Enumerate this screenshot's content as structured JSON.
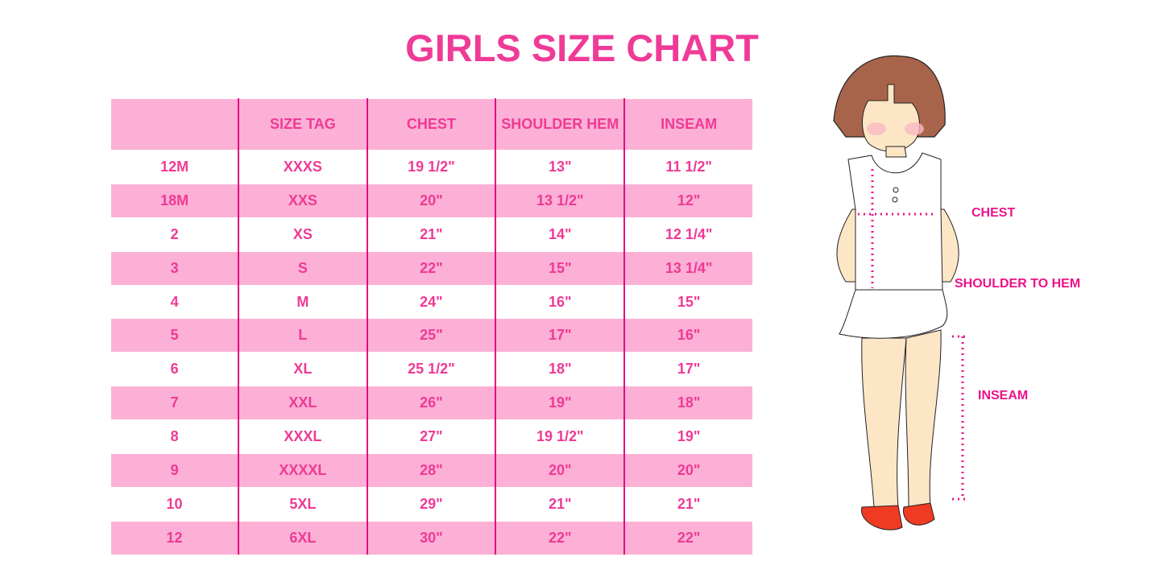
{
  "title": "GIRLS SIZE CHART",
  "table": {
    "headers": [
      "",
      "SIZE TAG",
      "CHEST",
      "SHOULDER HEM",
      "INSEAM"
    ],
    "rows": [
      [
        "12M",
        "XXXS",
        "19 1/2\"",
        "13\"",
        "11 1/2\""
      ],
      [
        "18M",
        "XXS",
        "20\"",
        "13 1/2\"",
        "12\""
      ],
      [
        "2",
        "XS",
        "21\"",
        "14\"",
        "12 1/4\""
      ],
      [
        "3",
        "S",
        "22\"",
        "15\"",
        "13 1/4\""
      ],
      [
        "4",
        "M",
        "24\"",
        "16\"",
        "15\""
      ],
      [
        "5",
        "L",
        "25\"",
        "17\"",
        "16\""
      ],
      [
        "6",
        "XL",
        "25 1/2\"",
        "18\"",
        "17\""
      ],
      [
        "7",
        "XXL",
        "26\"",
        "19\"",
        "18\""
      ],
      [
        "8",
        "XXXL",
        "27\"",
        "19 1/2\"",
        "19\""
      ],
      [
        "9",
        "XXXXL",
        "28\"",
        "20\"",
        "20\""
      ],
      [
        "10",
        "5XL",
        "29\"",
        "21\"",
        "21\""
      ],
      [
        "12",
        "6XL",
        "30\"",
        "22\"",
        "22\""
      ]
    ]
  },
  "figure": {
    "labels": {
      "chest": "CHEST",
      "shoulder_to_hem": "SHOULDER TO HEM",
      "inseam": "INSEAM"
    }
  },
  "colors": {
    "accent": "#ef3b97",
    "row_pink": "#fcb0d5",
    "divider": "#e4097f",
    "measure": "#ec128a"
  }
}
